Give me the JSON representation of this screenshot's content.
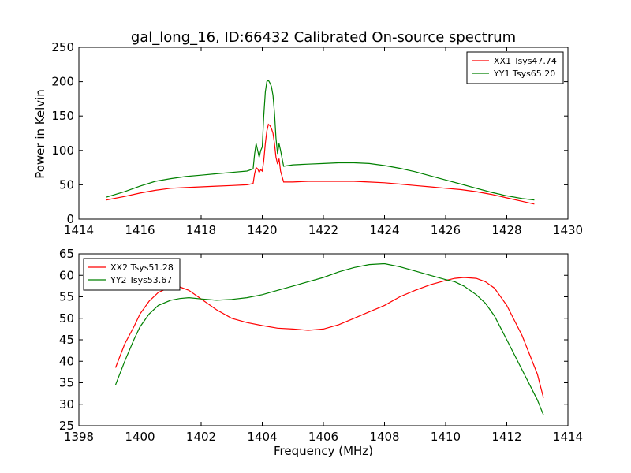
{
  "figure": {
    "title": "gal_long_16, ID:66432 Calibrated On-source spectrum",
    "xlabel": "Frequency (MHz)",
    "ylabel": "Power in Kelvin"
  },
  "chart_data": [
    {
      "type": "line",
      "title": "gal_long_16, ID:66432 Calibrated On-source spectrum",
      "xlabel": "",
      "ylabel": "Power in Kelvin",
      "xlim": [
        1414,
        1430
      ],
      "ylim": [
        0,
        250
      ],
      "xticks": [
        "1414",
        "1416",
        "1418",
        "1420",
        "1422",
        "1424",
        "1426",
        "1428",
        "1430"
      ],
      "yticks": [
        "0",
        "50",
        "100",
        "150",
        "200",
        "250"
      ],
      "grid": false,
      "legend": "top-right",
      "series": [
        {
          "name": "XX1 Tsys47.74",
          "color": "#ff0000",
          "x": [
            1414.9,
            1415.5,
            1416.0,
            1416.5,
            1417.0,
            1417.5,
            1418.0,
            1418.5,
            1419.0,
            1419.5,
            1419.7,
            1419.75,
            1419.8,
            1419.85,
            1419.9,
            1419.95,
            1420.0,
            1420.05,
            1420.1,
            1420.15,
            1420.2,
            1420.25,
            1420.3,
            1420.35,
            1420.4,
            1420.45,
            1420.5,
            1420.55,
            1420.6,
            1420.7,
            1421.0,
            1421.5,
            1422.0,
            1422.5,
            1423.0,
            1423.5,
            1424.0,
            1424.5,
            1425.0,
            1425.5,
            1426.0,
            1426.5,
            1427.0,
            1427.5,
            1428.0,
            1428.5,
            1428.9
          ],
          "y": [
            28,
            33,
            38,
            42,
            45,
            46,
            47,
            48,
            49,
            50,
            52,
            66,
            75,
            73,
            68,
            72,
            70,
            85,
            110,
            128,
            138,
            136,
            132,
            125,
            110,
            90,
            80,
            88,
            70,
            54,
            54,
            55,
            55,
            55,
            55,
            54,
            53,
            51,
            49,
            47,
            45,
            43,
            40,
            36,
            31,
            26,
            22
          ]
        },
        {
          "name": "YY1 Tsys65.20",
          "color": "#008000",
          "x": [
            1414.9,
            1415.5,
            1416.0,
            1416.5,
            1417.0,
            1417.5,
            1418.0,
            1418.5,
            1419.0,
            1419.5,
            1419.7,
            1419.75,
            1419.8,
            1419.85,
            1419.9,
            1419.95,
            1420.0,
            1420.05,
            1420.1,
            1420.15,
            1420.2,
            1420.25,
            1420.3,
            1420.35,
            1420.4,
            1420.45,
            1420.5,
            1420.55,
            1420.6,
            1420.7,
            1421.0,
            1421.5,
            1422.0,
            1422.5,
            1423.0,
            1423.5,
            1424.0,
            1424.5,
            1425.0,
            1425.5,
            1426.0,
            1426.5,
            1427.0,
            1427.5,
            1428.0,
            1428.5,
            1428.9
          ],
          "y": [
            32,
            40,
            48,
            55,
            59,
            62,
            64,
            66,
            68,
            70,
            73,
            95,
            110,
            100,
            90,
            100,
            105,
            150,
            185,
            200,
            202,
            198,
            193,
            180,
            155,
            118,
            95,
            110,
            100,
            77,
            79,
            80,
            81,
            82,
            82,
            81,
            78,
            74,
            69,
            63,
            57,
            51,
            45,
            39,
            34,
            30,
            28
          ]
        }
      ]
    },
    {
      "type": "line",
      "title": "",
      "xlabel": "Frequency (MHz)",
      "ylabel": "",
      "xlim": [
        1398,
        1414
      ],
      "ylim": [
        25,
        65
      ],
      "xticks": [
        "1398",
        "1400",
        "1402",
        "1404",
        "1406",
        "1408",
        "1410",
        "1412",
        "1414"
      ],
      "yticks": [
        "25",
        "30",
        "35",
        "40",
        "45",
        "50",
        "55",
        "60",
        "65"
      ],
      "grid": false,
      "legend": "top-left",
      "series": [
        {
          "name": "XX2 Tsys51.28",
          "color": "#ff0000",
          "x": [
            1399.2,
            1399.5,
            1399.8,
            1400.0,
            1400.3,
            1400.6,
            1401.0,
            1401.3,
            1401.6,
            1402.0,
            1402.5,
            1403.0,
            1403.5,
            1404.0,
            1404.5,
            1405.0,
            1405.5,
            1406.0,
            1406.5,
            1407.0,
            1407.5,
            1408.0,
            1408.5,
            1409.0,
            1409.5,
            1410.0,
            1410.3,
            1410.6,
            1411.0,
            1411.3,
            1411.6,
            1412.0,
            1412.5,
            1413.0,
            1413.2
          ],
          "y": [
            38.5,
            44,
            48,
            51,
            54,
            56,
            57.3,
            57.3,
            56.5,
            54.5,
            52,
            50,
            49,
            48.3,
            47.7,
            47.5,
            47.2,
            47.5,
            48.5,
            50,
            51.5,
            53,
            55,
            56.5,
            57.8,
            58.8,
            59.3,
            59.5,
            59.3,
            58.5,
            57,
            53,
            46,
            37,
            31.5
          ]
        },
        {
          "name": "YY2 Tsys53.67",
          "color": "#008000",
          "x": [
            1399.2,
            1399.5,
            1399.8,
            1400.0,
            1400.3,
            1400.6,
            1401.0,
            1401.3,
            1401.6,
            1402.0,
            1402.5,
            1403.0,
            1403.5,
            1404.0,
            1404.5,
            1405.0,
            1405.5,
            1406.0,
            1406.5,
            1407.0,
            1407.5,
            1408.0,
            1408.5,
            1409.0,
            1409.5,
            1410.0,
            1410.3,
            1410.6,
            1411.0,
            1411.3,
            1411.6,
            1412.0,
            1412.5,
            1413.0,
            1413.2
          ],
          "y": [
            34.5,
            40,
            45,
            48,
            51,
            53,
            54.2,
            54.6,
            54.8,
            54.5,
            54.2,
            54.4,
            54.8,
            55.5,
            56.5,
            57.5,
            58.5,
            59.5,
            60.8,
            61.8,
            62.5,
            62.7,
            62,
            61,
            60,
            59,
            58.5,
            57.5,
            55.5,
            53.5,
            50.5,
            45,
            38,
            31,
            27.5
          ]
        }
      ]
    }
  ]
}
